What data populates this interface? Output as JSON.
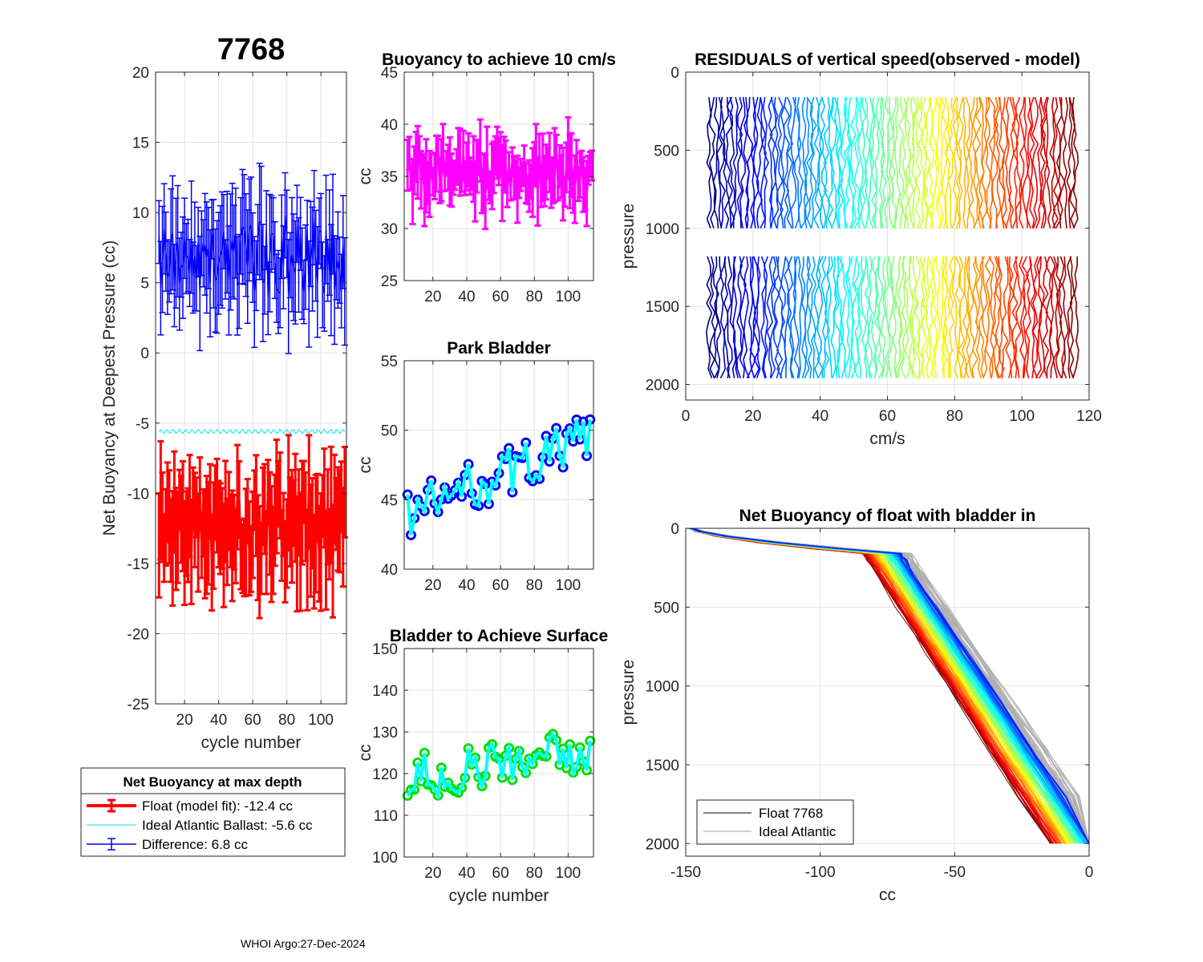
{
  "figure": {
    "main_title": "7768",
    "footer": "WHOI Argo:27-Dec-2024"
  },
  "chart_data": [
    {
      "id": "net_buoyancy",
      "type": "line",
      "title": "7768",
      "xlabel": "cycle number",
      "ylabel": "Net Buoyancy at Deepest Pressure (cc)",
      "xlim": [
        3,
        115
      ],
      "ylim": [
        -25,
        20
      ],
      "xticks": [
        20,
        40,
        60,
        80,
        100
      ],
      "yticks": [
        -25,
        -20,
        -15,
        -10,
        -5,
        0,
        5,
        10,
        15,
        20
      ],
      "cycle_start": 5,
      "cycle_end": 114,
      "series": [
        {
          "name": "Float (model fit)",
          "color": "#ff0000",
          "mean": -12.4,
          "spread": 2.6,
          "errorbar": 3.5
        },
        {
          "name": "Ideal Atlantic Ballast",
          "color": "#00e5e5",
          "mean": -5.6,
          "spread": 0.15,
          "errorbar": 0
        },
        {
          "name": "Difference",
          "color": "#0000ff",
          "mean": 6.8,
          "spread": 2.4,
          "errorbar": 3.5
        }
      ],
      "legend": {
        "title": "Net Buoyancy at max depth",
        "entries": [
          {
            "label": "Float (model fit): -12.4 cc",
            "color": "#ff0000"
          },
          {
            "label": "Ideal Atlantic Ballast:  -5.6 cc",
            "color": "#00e5e5"
          },
          {
            "label": "Difference:   6.8 cc",
            "color": "#0000ff"
          }
        ]
      }
    },
    {
      "id": "buoyancy_10cms",
      "type": "line",
      "title": "Buoyancy to achieve 10 cm/s",
      "xlabel": "",
      "ylabel": "cc",
      "xlim": [
        3,
        115
      ],
      "ylim": [
        25,
        45
      ],
      "xticks": [
        20,
        40,
        60,
        80,
        100
      ],
      "yticks": [
        25,
        30,
        35,
        40,
        45
      ],
      "series": [
        {
          "name": "buoyancy",
          "color": "#ff00ff",
          "mean": 35.5,
          "spread": 2.2,
          "errorbar": 2.8
        }
      ]
    },
    {
      "id": "park_bladder",
      "type": "line",
      "title": "Park Bladder",
      "xlabel": "",
      "ylabel": "cc",
      "xlim": [
        3,
        115
      ],
      "ylim": [
        40,
        55
      ],
      "xticks": [
        20,
        40,
        60,
        80,
        100
      ],
      "yticks": [
        40,
        45,
        50,
        55
      ],
      "series": [
        {
          "name": "park bladder",
          "color": "#00ffff",
          "marker_color": "#0000ff",
          "start": 44.0,
          "end": 49.5,
          "spread": 1.8
        }
      ]
    },
    {
      "id": "bladder_surface",
      "type": "line",
      "title": "Bladder to Achieve Surface",
      "xlabel": "cycle number",
      "ylabel": "cc",
      "xlim": [
        3,
        115
      ],
      "ylim": [
        100,
        150
      ],
      "xticks": [
        20,
        40,
        60,
        80,
        100
      ],
      "yticks": [
        100,
        110,
        120,
        130,
        140,
        150
      ],
      "series": [
        {
          "name": "surface bladder",
          "color": "#00ffff",
          "marker_color": "#00e000",
          "start": 119,
          "end": 126,
          "spread": 5.5
        }
      ]
    },
    {
      "id": "residuals",
      "type": "line",
      "title": "RESIDUALS of vertical speed(observed - model)",
      "xlabel": "cm/s",
      "ylabel": "pressure",
      "xlim": [
        0,
        120
      ],
      "ylim": [
        0,
        2100
      ],
      "y_reversed": true,
      "xticks": [
        0,
        20,
        40,
        60,
        80,
        100,
        120
      ],
      "yticks": [
        0,
        500,
        1000,
        1500,
        2000
      ],
      "profile_count": 110,
      "first_offset": 7,
      "last_offset": 116,
      "segments": [
        [
          160,
          1000
        ],
        [
          1180,
          2000
        ]
      ]
    },
    {
      "id": "net_buoyancy_bladder_in",
      "type": "line",
      "title": "Net Buoyancy of float with bladder in",
      "xlabel": "cc",
      "ylabel": "pressure",
      "xlim": [
        -150,
        0
      ],
      "ylim": [
        0,
        2080
      ],
      "y_reversed": true,
      "xticks": [
        -150,
        -100,
        -50,
        0
      ],
      "yticks": [
        0,
        500,
        1000,
        1500,
        2000
      ],
      "profile_count": 110,
      "legend": {
        "entries": [
          {
            "label": "Float 7768",
            "color": "#000000"
          },
          {
            "label": "Ideal Atlantic",
            "color": "#a6a6a6"
          }
        ]
      }
    }
  ]
}
